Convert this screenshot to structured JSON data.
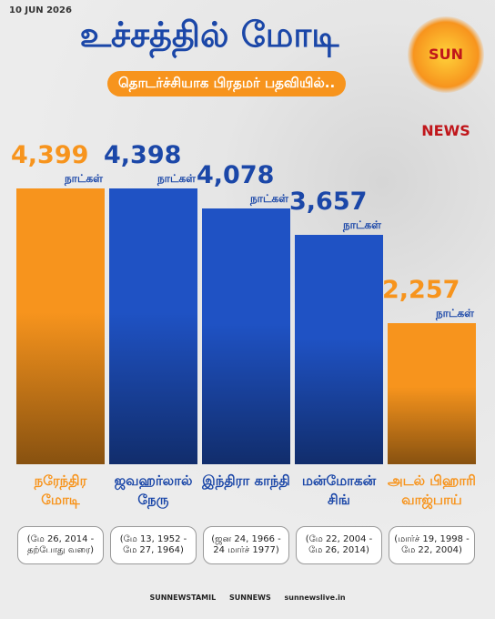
{
  "chart_data": {
    "type": "bar",
    "date": "10 JUN 2026",
    "title": "உச்சத்தில் மோடி",
    "subtitle": "தொடர்ச்சியாக பிரதமர் பதவியில்..",
    "logo": "SUN NEWS",
    "unit": "நாட்கள்",
    "categories": [
      "நரேந்திர மோடி",
      "ஜவஹர்லால் நேரு",
      "இந்திரா காந்தி",
      "மன்மோகன் சிங்",
      "அடல் பிஹாரி வாஜ்பாய்"
    ],
    "values": [
      4399,
      4398,
      4078,
      3657,
      2257
    ],
    "value_labels": [
      "4,399",
      "4,398",
      "4,078",
      "3,657",
      "2,257"
    ],
    "colors": [
      "#f7941d",
      "#1f52c4",
      "#1f52c4",
      "#1f52c4",
      "#f7941d"
    ],
    "periods": [
      "(மே 26, 2014 - தற்போது வரை)",
      "(மே 13, 1952 - மே 27, 1964)",
      "(ஜன 24, 1966 - 24 மார்ச் 1977)",
      "(மே 22, 2004 - மே 26, 2014)",
      "(மார்ச் 19, 1998 - மே 22, 2004)"
    ],
    "footer": [
      "SUNNEWSTAMIL",
      "SUNNEWS",
      "sunnewslive.in"
    ]
  }
}
